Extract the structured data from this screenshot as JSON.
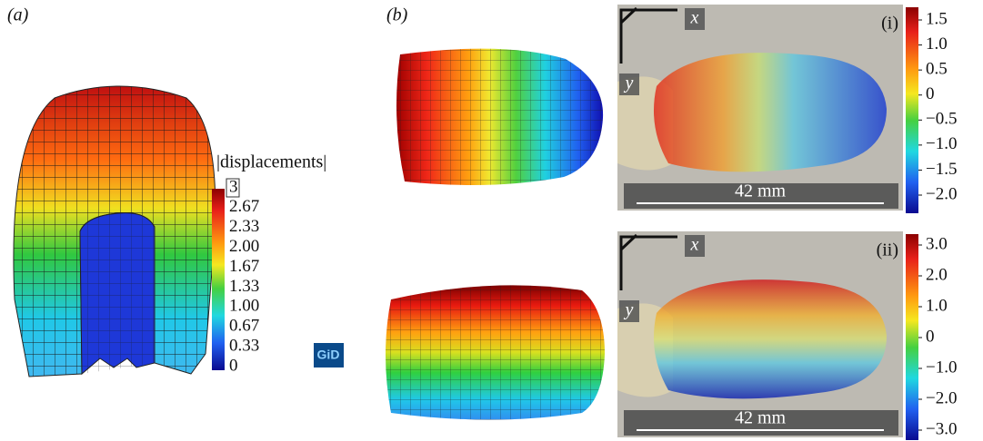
{
  "panel_a": {
    "label": "(a)",
    "legend_title": "|displacements|",
    "ticks": [
      "3",
      "2.67",
      "2.33",
      "2.00",
      "1.67",
      "1.33",
      "1.00",
      "0.67",
      "0.33",
      "0"
    ],
    "logo": "GiD"
  },
  "panel_b": {
    "label": "(b)",
    "photos": [
      {
        "id": "(i)",
        "axis_x": "x",
        "axis_y": "y",
        "scale_bar": "42 mm",
        "ticks": [
          "1.5",
          "1.0",
          "0.5",
          "0",
          "−0.5",
          "−1.0",
          "−1.5",
          "−2.0"
        ]
      },
      {
        "id": "(ii)",
        "axis_x": "x",
        "axis_y": "y",
        "scale_bar": "42 mm",
        "ticks": [
          "3.0",
          "2.0",
          "1.0",
          "0",
          "−1.0",
          "−2.0",
          "−3.0"
        ]
      }
    ]
  }
}
